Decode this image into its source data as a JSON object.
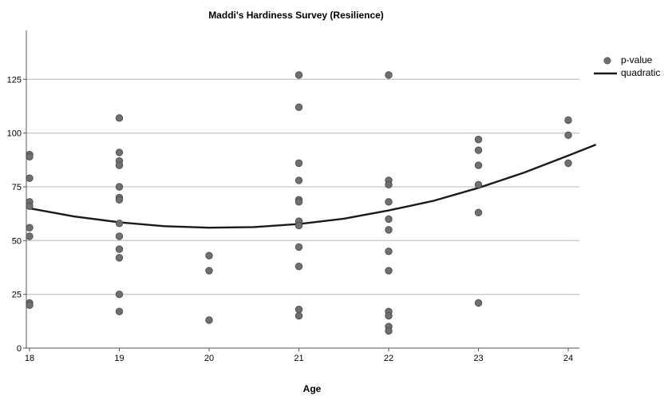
{
  "chart_data": {
    "type": "scatter",
    "title": "Maddi's Hardiness Survey (Resilience)",
    "xlabel": "Age",
    "ylabel": "",
    "xlim": [
      18,
      24.3
    ],
    "ylim": [
      0,
      150
    ],
    "x_ticks": [
      "18",
      "19",
      "20",
      "21",
      "22",
      "23",
      "24"
    ],
    "y_ticks": [
      "0",
      "25",
      "50",
      "75",
      "100",
      "125"
    ],
    "grid": "horizontal",
    "legend_position": "top-right",
    "series": [
      {
        "name": "p-value",
        "kind": "points",
        "color": "#707070",
        "points": [
          [
            18,
            90
          ],
          [
            18,
            89
          ],
          [
            18,
            79
          ],
          [
            18,
            68
          ],
          [
            18,
            66
          ],
          [
            18,
            56
          ],
          [
            18,
            52
          ],
          [
            18,
            21
          ],
          [
            18,
            20
          ],
          [
            19,
            107
          ],
          [
            19,
            91
          ],
          [
            19,
            87
          ],
          [
            19,
            85
          ],
          [
            19,
            75
          ],
          [
            19,
            70
          ],
          [
            19,
            69
          ],
          [
            19,
            58
          ],
          [
            19,
            52
          ],
          [
            19,
            46
          ],
          [
            19,
            42
          ],
          [
            19,
            25
          ],
          [
            19,
            17
          ],
          [
            20,
            43
          ],
          [
            20,
            36
          ],
          [
            20,
            13
          ],
          [
            21,
            127
          ],
          [
            21,
            112
          ],
          [
            21,
            86
          ],
          [
            21,
            78
          ],
          [
            21,
            69
          ],
          [
            21,
            68
          ],
          [
            21,
            59
          ],
          [
            21,
            57
          ],
          [
            21,
            47
          ],
          [
            21,
            38
          ],
          [
            21,
            18
          ],
          [
            21,
            15
          ],
          [
            22,
            127
          ],
          [
            22,
            78
          ],
          [
            22,
            76
          ],
          [
            22,
            68
          ],
          [
            22,
            60
          ],
          [
            22,
            55
          ],
          [
            22,
            45
          ],
          [
            22,
            36
          ],
          [
            22,
            17
          ],
          [
            22,
            15
          ],
          [
            22,
            10
          ],
          [
            22,
            8
          ],
          [
            23,
            97
          ],
          [
            23,
            92
          ],
          [
            23,
            85
          ],
          [
            23,
            76
          ],
          [
            23,
            63
          ],
          [
            23,
            21
          ],
          [
            24,
            106
          ],
          [
            24,
            99
          ],
          [
            24,
            86
          ]
        ]
      },
      {
        "name": "quadratic",
        "kind": "fit",
        "color": "#1a1a1a",
        "x": [
          18,
          18.5,
          19,
          19.5,
          20,
          20.5,
          21,
          21.5,
          22,
          22.5,
          23,
          23.5,
          24,
          24.3
        ],
        "y": [
          65,
          61.2,
          58.5,
          56.7,
          56,
          56.3,
          57.7,
          60.2,
          64,
          68.5,
          74.5,
          81.5,
          89.5,
          94.5
        ]
      }
    ]
  }
}
